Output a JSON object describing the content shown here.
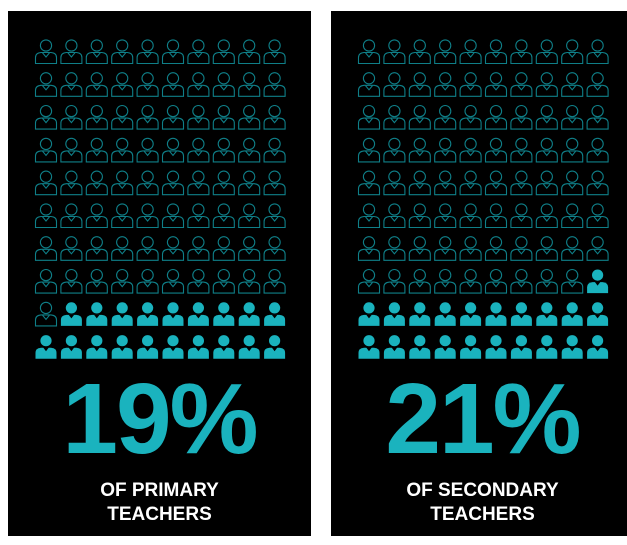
{
  "colors": {
    "accent": "#1ab3be",
    "outline": "#0f7f88",
    "panel_bg": "#000000",
    "caption_text": "#ffffff"
  },
  "icon": "person-icon",
  "chart_data": [
    {
      "type": "pictogram",
      "grid": {
        "columns": 10,
        "rows": 10
      },
      "total_icons": 100,
      "filled_icons": 19,
      "value_percent": 19,
      "label_value": "19%",
      "caption_lines": [
        "OF PRIMARY",
        "TEACHERS"
      ]
    },
    {
      "type": "pictogram",
      "grid": {
        "columns": 10,
        "rows": 10
      },
      "total_icons": 100,
      "filled_icons": 21,
      "value_percent": 21,
      "label_value": "21%",
      "caption_lines": [
        "OF SECONDARY",
        "TEACHERS"
      ]
    }
  ]
}
